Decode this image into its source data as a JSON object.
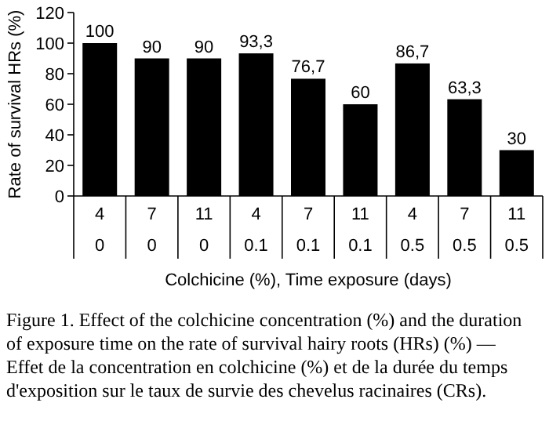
{
  "chart_data": {
    "type": "bar",
    "ylabel": "Rate of survival HRs (%)",
    "xlabel": "Colchicine (%), Time exposure (days)",
    "categories": [
      "4\n0",
      "7\n0",
      "11\n0",
      "4\n0.1",
      "7\n0.1",
      "11\n0.1",
      "4\n0.5",
      "7\n0.5",
      "11\n0.5"
    ],
    "values": [
      100,
      90,
      90,
      93.3,
      76.7,
      60,
      86.7,
      63.3,
      30
    ],
    "value_labels": [
      "100",
      "90",
      "90",
      "93,3",
      "76,7",
      "60",
      "86,7",
      "63,3",
      "30"
    ],
    "color": "#000000",
    "ylim": [
      0,
      120
    ],
    "yticks": [
      0,
      20,
      40,
      60,
      80,
      100,
      120
    ],
    "annotations": [
      "Figure 1. Effect of the colchicine concentration (%) and the duration of exposure time on the rate of survival hairy roots (HRs) (%) — Effet de la concentration en colchicine (%) et de la durée du temps d'exposition sur le taux de survie des chevelus racinaires (CRs)."
    ]
  }
}
